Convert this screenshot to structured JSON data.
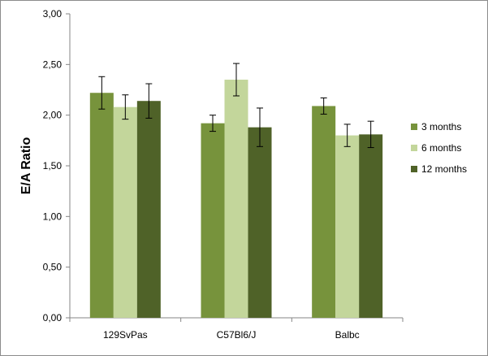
{
  "chart_data": {
    "type": "bar",
    "title": "",
    "xlabel": "",
    "ylabel": "E/A Ratio",
    "ylim": [
      0,
      3
    ],
    "y_ticks": [
      "0,00",
      "0,50",
      "1,00",
      "1,50",
      "2,00",
      "2,50",
      "3,00"
    ],
    "y_tick_values": [
      0,
      0.5,
      1,
      1.5,
      2,
      2.5,
      3
    ],
    "categories": [
      "129SvPas",
      "C57Bl6/J",
      "Balbc"
    ],
    "series": [
      {
        "name": "3 months",
        "color": "#77933c",
        "values": [
          2.22,
          1.92,
          2.09
        ],
        "errors": [
          0.16,
          0.08,
          0.08
        ]
      },
      {
        "name": "6 months",
        "color": "#c3d69b",
        "values": [
          2.08,
          2.35,
          1.8
        ],
        "errors": [
          0.12,
          0.16,
          0.11
        ]
      },
      {
        "name": "12 months",
        "color": "#4f6228",
        "values": [
          2.14,
          1.88,
          1.81
        ],
        "errors": [
          0.17,
          0.19,
          0.13
        ]
      }
    ],
    "grid": false,
    "legend_position": "right",
    "error_bars": true
  }
}
